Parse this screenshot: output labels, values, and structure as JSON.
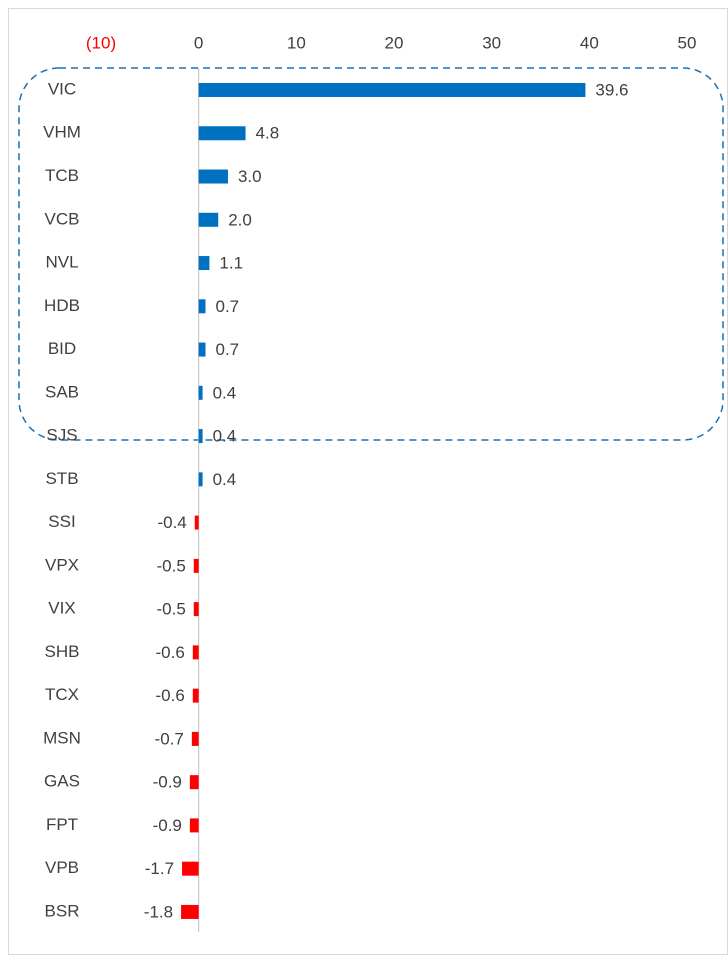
{
  "chart_data": {
    "type": "hbar",
    "categories": [
      "VIC",
      "VHM",
      "TCB",
      "VCB",
      "NVL",
      "HDB",
      "BID",
      "SAB",
      "SJS",
      "STB",
      "SSI",
      "VPX",
      "VIX",
      "SHB",
      "TCX",
      "MSN",
      "GAS",
      "FPT",
      "VPB",
      "BSR"
    ],
    "values": [
      39.6,
      4.8,
      3.0,
      2.0,
      1.1,
      0.7,
      0.7,
      0.4,
      0.4,
      0.4,
      -0.4,
      -0.5,
      -0.5,
      -0.6,
      -0.6,
      -0.7,
      -0.9,
      -0.9,
      -1.7,
      -1.8
    ],
    "value_labels": [
      "39.6",
      "4.8",
      "3.0",
      "2.0",
      "1.1",
      "0.7",
      "0.7",
      "0.4",
      "0.4",
      "0.4",
      "-0.4",
      "-0.5",
      "-0.5",
      "-0.6",
      "-0.6",
      "-0.7",
      "-0.9",
      "-0.9",
      "-1.7",
      "-1.8"
    ],
    "color": "#0070c0",
    "negative_color": "#ff0000",
    "xlim": [
      -10,
      50
    ],
    "xticks": [
      {
        "value": -10,
        "label": "(10)"
      },
      0,
      10,
      20,
      30,
      40,
      50
    ]
  }
}
